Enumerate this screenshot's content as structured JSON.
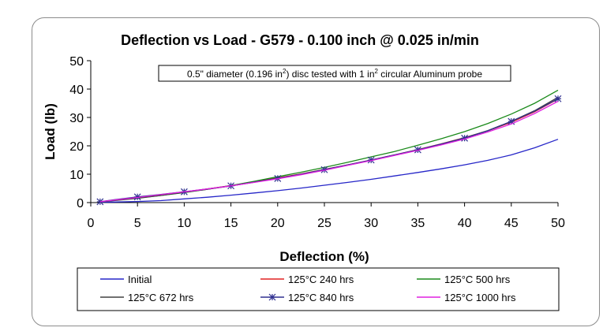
{
  "chart_data": {
    "type": "line",
    "title": "Deflection vs Load -   G579 - 0.100 inch @ 0.025 in/min",
    "xlabel": "Deflection (%)",
    "ylabel": "Load (lb)",
    "xlim": [
      0,
      50
    ],
    "ylim": [
      0,
      50
    ],
    "xticks": [
      0,
      5,
      10,
      15,
      20,
      25,
      30,
      35,
      40,
      45,
      50
    ],
    "yticks": [
      0,
      10,
      20,
      30,
      40,
      50
    ],
    "grid": false,
    "annotation": {
      "parts": [
        {
          "t": "0.5\" diameter (0.196 in",
          "sup": false
        },
        {
          "t": "2",
          "sup": true
        },
        {
          "t": ") disc tested with 1 in",
          "sup": false
        },
        {
          "t": "2",
          "sup": true
        },
        {
          "t": " circular Aluminum probe",
          "sup": false
        }
      ]
    },
    "legend_position": "bottom",
    "x": [
      1,
      2.5,
      5,
      7.5,
      10,
      12.5,
      15,
      17.5,
      20,
      22.5,
      25,
      27.5,
      30,
      32.5,
      35,
      37.5,
      40,
      42.5,
      45,
      47.5,
      50
    ],
    "series": [
      {
        "name": "Initial",
        "color": "#2626c8",
        "marker": "none",
        "values": [
          0.1,
          0.2,
          0.4,
          0.7,
          1.3,
          1.9,
          2.6,
          3.4,
          4.2,
          5.1,
          6.1,
          7.1,
          8.2,
          9.4,
          10.6,
          11.9,
          13.3,
          14.9,
          16.8,
          19.3,
          22.3
        ]
      },
      {
        "name": "125°C 240 hrs",
        "color": "#e02020",
        "marker": "none",
        "values": [
          0.3,
          0.9,
          1.8,
          2.7,
          3.7,
          4.8,
          6.0,
          7.3,
          8.7,
          10.1,
          11.7,
          13.3,
          15.0,
          16.8,
          18.7,
          20.7,
          22.9,
          25.3,
          28.3,
          32.0,
          36.5
        ]
      },
      {
        "name": "125°C 500 hrs",
        "color": "#1a8a1a",
        "marker": "none",
        "values": [
          0.2,
          0.8,
          1.6,
          2.5,
          3.5,
          4.7,
          6.0,
          7.5,
          9.1,
          10.7,
          12.4,
          14.2,
          16.1,
          18.0,
          20.2,
          22.5,
          25.0,
          27.9,
          31.2,
          35.0,
          39.6
        ]
      },
      {
        "name": "125°C 672 hrs",
        "color": "#404040",
        "marker": "none",
        "values": [
          0.2,
          0.7,
          1.5,
          2.5,
          3.6,
          4.7,
          5.9,
          7.2,
          8.6,
          10.0,
          11.6,
          13.2,
          14.9,
          16.7,
          18.6,
          20.6,
          22.8,
          25.4,
          28.6,
          32.4,
          37.1
        ]
      },
      {
        "name": "125°C 840 hrs",
        "color": "#303090",
        "marker": "star",
        "values": [
          0.3,
          1.0,
          2.0,
          2.9,
          3.8,
          4.8,
          5.9,
          7.2,
          8.5,
          10.0,
          11.6,
          13.3,
          15.0,
          16.8,
          18.6,
          20.6,
          22.7,
          25.3,
          28.6,
          32.2,
          36.6
        ]
      },
      {
        "name": "125°C 1000 hrs",
        "color": "#e020e0",
        "marker": "none",
        "values": [
          0.3,
          0.9,
          1.8,
          2.8,
          3.8,
          4.8,
          5.9,
          7.1,
          8.4,
          9.8,
          11.4,
          13.1,
          14.8,
          16.6,
          18.4,
          20.3,
          22.4,
          24.9,
          27.7,
          31.4,
          35.7
        ]
      }
    ],
    "marker_every": [
      1,
      5,
      10,
      15,
      20,
      25,
      30,
      35,
      40,
      45,
      50
    ]
  }
}
